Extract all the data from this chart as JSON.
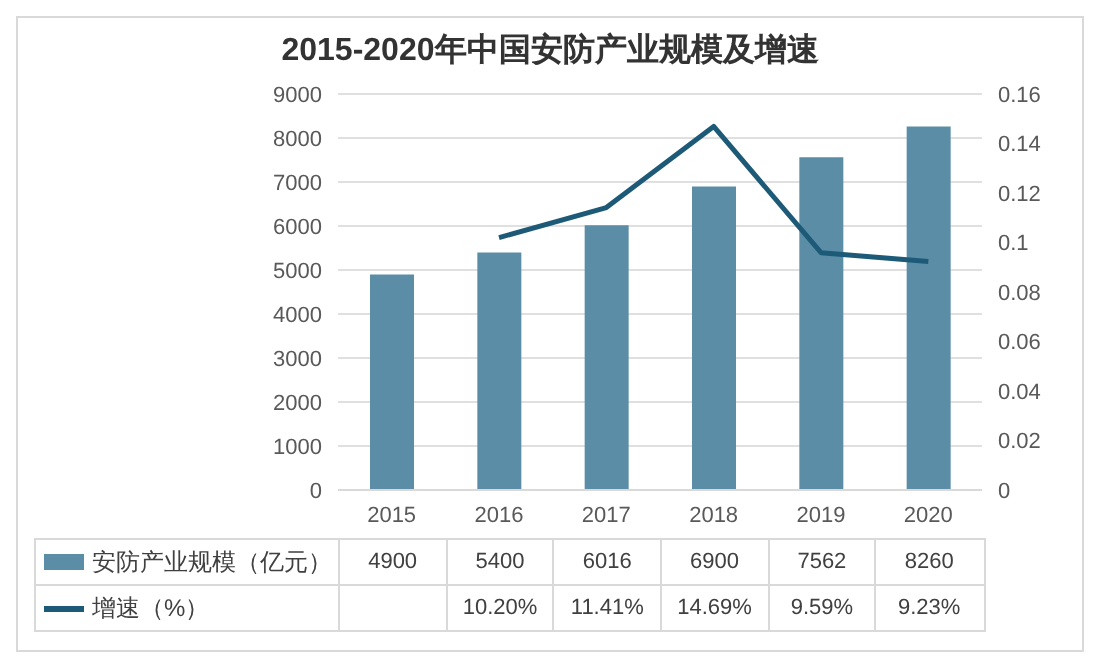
{
  "chart_data": {
    "type": "bar",
    "title": "2015-2020年中国安防产业规模及增速",
    "categories": [
      "2015",
      "2016",
      "2017",
      "2018",
      "2019",
      "2020"
    ],
    "series": [
      {
        "name": "安防产业规模（亿元）",
        "color": "#5b8ea6",
        "values": [
          4900,
          5400,
          6016,
          6900,
          7562,
          8260
        ],
        "value_labels": [
          "4900",
          "5400",
          "6016",
          "6900",
          "7562",
          "8260"
        ]
      },
      {
        "name": "增速（%）",
        "type": "line",
        "axis": "y2",
        "color": "#1d5a78",
        "values": [
          null,
          0.102,
          0.1141,
          0.1469,
          0.0959,
          0.0923
        ],
        "value_labels": [
          null,
          "10.20%",
          "11.41%",
          "14.69%",
          "9.59%",
          "9.23%"
        ]
      }
    ],
    "ylim": [
      0,
      9000
    ],
    "yticks": [
      0,
      1000,
      2000,
      3000,
      4000,
      5000,
      6000,
      7000,
      8000,
      9000
    ],
    "y2lim": [
      0,
      0.16
    ],
    "y2ticks": [
      0,
      0.02,
      0.04,
      0.06,
      0.08,
      0.1,
      0.12,
      0.14,
      0.16
    ],
    "grid": "y",
    "legend": "bottom"
  }
}
